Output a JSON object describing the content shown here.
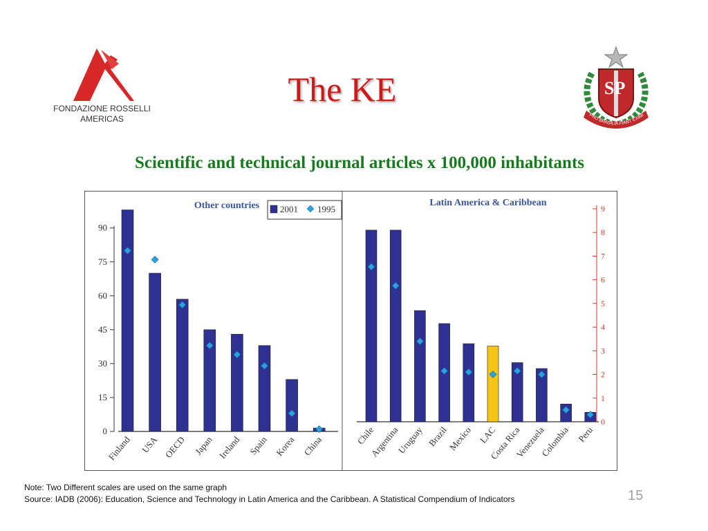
{
  "slide": {
    "title": "The KE",
    "subtitle": "Scientific and technical journal articles x 100,000 inhabitants",
    "note": "Note: Two Different scales are used on the same graph",
    "source": "Source: IADB (2006): Education, Science and Technology in Latin America and the Caribbean. A Statistical Compendium of Indicators",
    "page_number": "15"
  },
  "logos": {
    "left": {
      "icon": "fondazione-rosselli-logo",
      "line1": "FONDAZIONE ROSSELLI",
      "line2": "AMERICAS",
      "color": "#d62828"
    },
    "right": {
      "icon": "sao-paulo-coat-of-arms",
      "text": "SP",
      "motto": "PRO BRASILIA FIANT EXIMIA",
      "color": "#c0292b"
    }
  },
  "chart_data": [
    {
      "type": "bar",
      "title": "Other countries",
      "categories": [
        "Finland",
        "USA",
        "OECD",
        "Japan",
        "Ireland",
        "Spain",
        "Korea",
        "China"
      ],
      "series": [
        {
          "name": "2001",
          "kind": "bar",
          "values": [
            98,
            70,
            58.5,
            45,
            43,
            38,
            23,
            1.5
          ]
        },
        {
          "name": "1995",
          "kind": "marker",
          "values": [
            80,
            76,
            56,
            38,
            34,
            29,
            8,
            1
          ]
        }
      ],
      "y_ticks": [
        "0",
        "15",
        "30",
        "45",
        "60",
        "75",
        "90"
      ],
      "ylim": [
        0,
        100
      ],
      "y_axis_side": "left",
      "legend": {
        "position": "top-right",
        "entries": [
          "2001",
          "1995"
        ]
      },
      "grid": false,
      "colors": {
        "bar": "#2e3192",
        "marker": "#29a3e0"
      }
    },
    {
      "type": "bar",
      "title": "Latin America & Caribbean",
      "categories": [
        "Chile",
        "Argentina",
        "Uruguay",
        "Brazil",
        "Mexico",
        "LAC",
        "Costa Rica",
        "Venezuela",
        "Colombia",
        "Peru"
      ],
      "series": [
        {
          "name": "2001",
          "kind": "bar",
          "values": [
            8.1,
            8.1,
            4.7,
            4.15,
            3.3,
            3.2,
            2.5,
            2.25,
            0.75,
            0.4
          ]
        },
        {
          "name": "1995",
          "kind": "marker",
          "values": [
            6.55,
            5.75,
            3.4,
            2.15,
            2.1,
            2.0,
            2.15,
            2.0,
            0.5,
            0.3
          ]
        }
      ],
      "highlight": {
        "category": "LAC",
        "color": "#f5c518"
      },
      "y_ticks": [
        "0",
        "1",
        "2",
        "3",
        "4",
        "5",
        "6",
        "7",
        "8",
        "9"
      ],
      "ylim": [
        0,
        9.3
      ],
      "y_axis_side": "right",
      "grid": false,
      "colors": {
        "bar": "#2e3192",
        "marker": "#29a3e0",
        "axis": "#d33b2c"
      }
    }
  ]
}
